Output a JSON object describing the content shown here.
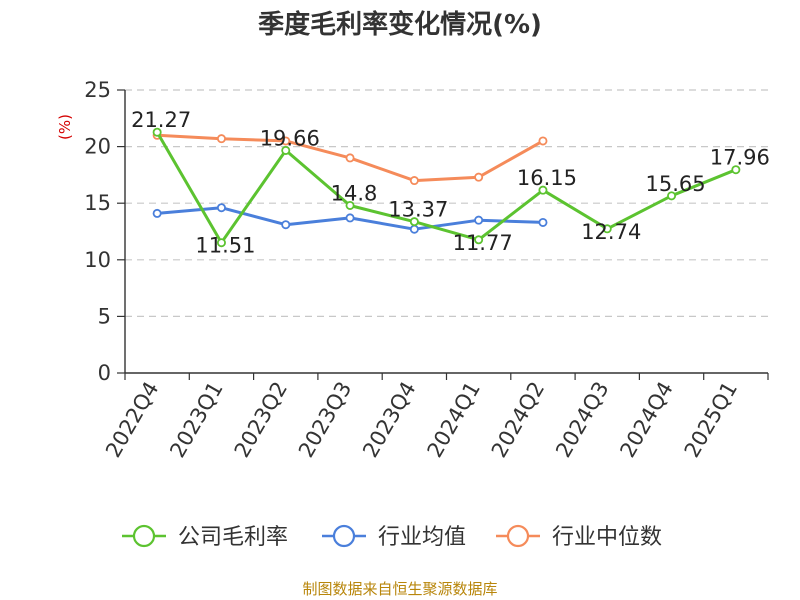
{
  "chart_data": {
    "type": "line",
    "title": "季度毛利率变化情况(%)",
    "unit_label": "(%)",
    "categories": [
      "2022Q4",
      "2023Q1",
      "2023Q2",
      "2023Q3",
      "2023Q4",
      "2024Q1",
      "2024Q2",
      "2024Q3",
      "2024Q4",
      "2025Q1"
    ],
    "ylim": [
      0,
      25
    ],
    "yticks": [
      0,
      5,
      10,
      15,
      20,
      25
    ],
    "grid": "horizontal-dashed",
    "legend_position": "bottom",
    "series": [
      {
        "name": "公司毛利率",
        "color": "#5cc330",
        "values": [
          21.27,
          11.51,
          19.66,
          14.8,
          13.37,
          11.77,
          16.15,
          12.74,
          15.65,
          17.96
        ],
        "labels": [
          "21.27",
          "11.51",
          "19.66",
          "14.8",
          "13.37",
          "11.77",
          "16.15",
          "12.74",
          "15.65",
          "17.96"
        ]
      },
      {
        "name": "行业均值",
        "color": "#4a7fdb",
        "values": [
          14.1,
          14.6,
          13.1,
          13.7,
          12.7,
          13.5,
          13.3,
          null,
          null,
          null
        ]
      },
      {
        "name": "行业中位数",
        "color": "#f58b5a",
        "values": [
          21.0,
          20.7,
          20.5,
          19.0,
          17.0,
          17.3,
          20.5,
          null,
          null,
          null
        ]
      }
    ]
  },
  "source": "制图数据来自恒生聚源数据库"
}
